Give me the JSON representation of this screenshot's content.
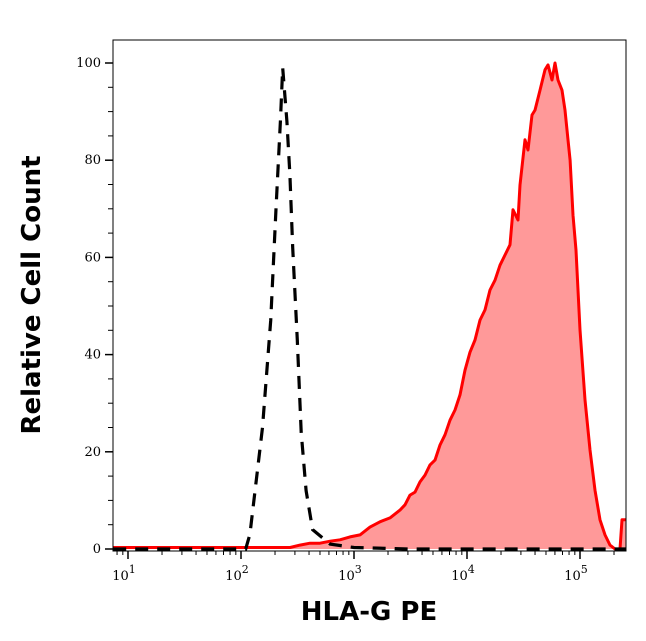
{
  "chart_data": {
    "type": "area",
    "title": "",
    "xlabel": "HLA-G PE",
    "ylabel": "Relative Cell Count",
    "x_scale": "log",
    "xlim": [
      7.4,
      256000
    ],
    "ylim": [
      0,
      105
    ],
    "xticks": [
      10,
      100,
      1000,
      10000,
      100000
    ],
    "yticks": [
      0,
      20,
      40,
      60,
      80,
      100
    ],
    "grid": false,
    "legend": "none",
    "series": [
      {
        "style": "dashed-line",
        "color": "#000000",
        "points": [
          [
            7.4,
            0
          ],
          [
            110,
            0
          ],
          [
            120,
            3
          ],
          [
            155,
            25
          ],
          [
            183,
            47
          ],
          [
            204,
            70
          ],
          [
            223,
            88
          ],
          [
            234,
            99
          ],
          [
            255,
            88
          ],
          [
            271,
            77
          ],
          [
            287,
            62
          ],
          [
            315,
            43
          ],
          [
            341,
            24
          ],
          [
            377,
            12
          ],
          [
            430,
            4
          ],
          [
            615,
            1
          ],
          [
            1000,
            0.3
          ],
          [
            3000,
            0
          ],
          [
            256000,
            0
          ]
        ]
      },
      {
        "style": "filled-area",
        "color": "#ff0000",
        "fill": "#ff9999",
        "points": [
          [
            7.4,
            0.3
          ],
          [
            272,
            0.3
          ],
          [
            333,
            0.8
          ],
          [
            408,
            1.2
          ],
          [
            500,
            1.2
          ],
          [
            614,
            1.6
          ],
          [
            752,
            1.9
          ],
          [
            922,
            2.5
          ],
          [
            1130,
            2.9
          ],
          [
            1386,
            4.5
          ],
          [
            1698,
            5.6
          ],
          [
            2083,
            6.4
          ],
          [
            2553,
            8.0
          ],
          [
            2828,
            9.1
          ],
          [
            3131,
            11.1
          ],
          [
            3467,
            11.7
          ],
          [
            3838,
            13.8
          ],
          [
            4249,
            15.2
          ],
          [
            4707,
            17.3
          ],
          [
            5212,
            18.3
          ],
          [
            5770,
            21.4
          ],
          [
            6387,
            23.5
          ],
          [
            7079,
            26.5
          ],
          [
            7834,
            28.6
          ],
          [
            8670,
            31.7
          ],
          [
            9594,
            36.8
          ],
          [
            10640,
            40.5
          ],
          [
            11770,
            43.0
          ],
          [
            13030,
            47.1
          ],
          [
            14420,
            49.2
          ],
          [
            15990,
            53.3
          ],
          [
            17700,
            55.3
          ],
          [
            19590,
            58.4
          ],
          [
            21680,
            60.5
          ],
          [
            24040,
            62.6
          ],
          [
            25530,
            69.8
          ],
          [
            28250,
            67.7
          ],
          [
            29440,
            74.9
          ],
          [
            32590,
            84.2
          ],
          [
            34670,
            82.1
          ],
          [
            37580,
            89.3
          ],
          [
            39990,
            90.3
          ],
          [
            44260,
            94.4
          ],
          [
            48980,
            98.6
          ],
          [
            52120,
            99.6
          ],
          [
            56490,
            96.5
          ],
          [
            60080,
            100
          ],
          [
            63830,
            96.5
          ],
          [
            69330,
            94.4
          ],
          [
            73620,
            90.3
          ],
          [
            78340,
            84.2
          ],
          [
            81660,
            80.0
          ],
          [
            86700,
            68.7
          ],
          [
            92260,
            61.5
          ],
          [
            100000,
            45.1
          ],
          [
            110700,
            30.7
          ],
          [
            122500,
            20.4
          ],
          [
            135800,
            12.1
          ],
          [
            150300,
            6.0
          ],
          [
            166400,
            2.9
          ],
          [
            184200,
            0.8
          ],
          [
            204200,
            0
          ],
          [
            225800,
            0
          ],
          [
            235500,
            6.0
          ],
          [
            256000,
            6.0
          ]
        ]
      }
    ]
  }
}
